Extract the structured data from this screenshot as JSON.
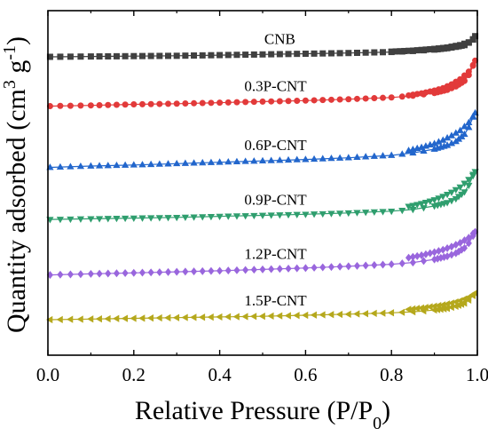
{
  "chart_data": {
    "type": "scatter",
    "xlabel": "Relative Pressure (P/P",
    "xlabel_sub": "0",
    "xlabel_suffix": ")",
    "ylabel": "Quantity adsorbed (cm",
    "ylabel_sup": "3",
    "ylabel_mid": " g",
    "ylabel_sup2": "-1",
    "ylabel_suffix": ")",
    "xlim": [
      0.0,
      1.0
    ],
    "ylim": [
      0,
      100
    ],
    "xticks": [
      "0.0",
      "0.2",
      "0.4",
      "0.6",
      "0.8",
      "1.0"
    ],
    "yticks_shown": false,
    "series": [
      {
        "name": "CNB",
        "color": "#404040",
        "marker": "square",
        "adsorption": [
          [
            0.005,
            86.6
          ],
          [
            0.1,
            86.7
          ],
          [
            0.2,
            86.8
          ],
          [
            0.3,
            86.9
          ],
          [
            0.4,
            87.1
          ],
          [
            0.5,
            87.3
          ],
          [
            0.6,
            87.5
          ],
          [
            0.7,
            87.7
          ],
          [
            0.8,
            88.0
          ],
          [
            0.85,
            88.3
          ],
          [
            0.9,
            88.7
          ],
          [
            0.93,
            89.1
          ],
          [
            0.95,
            89.5
          ],
          [
            0.97,
            90.0
          ],
          [
            0.98,
            90.7
          ],
          [
            0.99,
            91.7
          ],
          [
            0.995,
            92.6
          ]
        ],
        "desorption": [
          [
            0.99,
            91.6
          ],
          [
            0.98,
            90.8
          ],
          [
            0.96,
            90.0
          ],
          [
            0.93,
            89.3
          ],
          [
            0.9,
            88.9
          ],
          [
            0.85,
            88.4
          ],
          [
            0.8,
            88.1
          ]
        ]
      },
      {
        "name": "0.3P-CNT",
        "color": "#e23a3a",
        "marker": "circle",
        "adsorption": [
          [
            0.005,
            72.3
          ],
          [
            0.1,
            72.5
          ],
          [
            0.2,
            72.8
          ],
          [
            0.3,
            73.0
          ],
          [
            0.4,
            73.3
          ],
          [
            0.5,
            73.6
          ],
          [
            0.6,
            73.9
          ],
          [
            0.7,
            74.3
          ],
          [
            0.8,
            74.8
          ],
          [
            0.85,
            75.3
          ],
          [
            0.9,
            76.1
          ],
          [
            0.93,
            77.0
          ],
          [
            0.95,
            78.0
          ],
          [
            0.97,
            79.6
          ],
          [
            0.98,
            81.3
          ],
          [
            0.99,
            84.0
          ],
          [
            0.995,
            85.5
          ]
        ],
        "desorption": [
          [
            0.99,
            84.2
          ],
          [
            0.98,
            82.3
          ],
          [
            0.96,
            80.1
          ],
          [
            0.94,
            78.6
          ],
          [
            0.92,
            77.5
          ],
          [
            0.9,
            76.8
          ],
          [
            0.87,
            76.0
          ],
          [
            0.84,
            75.4
          ]
        ]
      },
      {
        "name": "0.6P-CNT",
        "color": "#2266cc",
        "marker": "triangle-up",
        "adsorption": [
          [
            0.005,
            54.5
          ],
          [
            0.1,
            54.9
          ],
          [
            0.2,
            55.2
          ],
          [
            0.3,
            55.6
          ],
          [
            0.4,
            56.0
          ],
          [
            0.5,
            56.4
          ],
          [
            0.6,
            56.8
          ],
          [
            0.7,
            57.3
          ],
          [
            0.8,
            58.0
          ],
          [
            0.85,
            58.7
          ],
          [
            0.9,
            59.8
          ],
          [
            0.93,
            60.9
          ],
          [
            0.95,
            62.0
          ],
          [
            0.97,
            64.1
          ],
          [
            0.98,
            66.1
          ],
          [
            0.99,
            69.1
          ],
          [
            0.995,
            70.3
          ]
        ],
        "desorption": [
          [
            0.99,
            69.3
          ],
          [
            0.98,
            67.5
          ],
          [
            0.96,
            65.2
          ],
          [
            0.94,
            63.7
          ],
          [
            0.92,
            62.4
          ],
          [
            0.9,
            61.4
          ],
          [
            0.87,
            60.3
          ],
          [
            0.84,
            59.4
          ]
        ]
      },
      {
        "name": "0.9P-CNT",
        "color": "#2f9e6e",
        "marker": "triangle-down",
        "adsorption": [
          [
            0.005,
            39.4
          ],
          [
            0.1,
            39.6
          ],
          [
            0.2,
            39.8
          ],
          [
            0.3,
            40.0
          ],
          [
            0.4,
            40.3
          ],
          [
            0.5,
            40.6
          ],
          [
            0.6,
            40.9
          ],
          [
            0.7,
            41.3
          ],
          [
            0.8,
            41.8
          ],
          [
            0.85,
            42.3
          ],
          [
            0.9,
            43.3
          ],
          [
            0.93,
            44.3
          ],
          [
            0.95,
            45.4
          ],
          [
            0.97,
            47.4
          ],
          [
            0.98,
            49.3
          ],
          [
            0.99,
            52.1
          ],
          [
            0.995,
            53.3
          ]
        ],
        "desorption": [
          [
            0.99,
            52.5
          ],
          [
            0.98,
            51.0
          ],
          [
            0.96,
            48.8
          ],
          [
            0.94,
            47.3
          ],
          [
            0.92,
            46.1
          ],
          [
            0.9,
            45.1
          ],
          [
            0.87,
            44.0
          ],
          [
            0.84,
            43.2
          ]
        ]
      },
      {
        "name": "1.2P-CNT",
        "color": "#9966dd",
        "marker": "diamond",
        "adsorption": [
          [
            0.005,
            23.3
          ],
          [
            0.1,
            23.6
          ],
          [
            0.2,
            23.9
          ],
          [
            0.3,
            24.2
          ],
          [
            0.4,
            24.5
          ],
          [
            0.5,
            24.9
          ],
          [
            0.6,
            25.3
          ],
          [
            0.7,
            25.8
          ],
          [
            0.8,
            26.4
          ],
          [
            0.85,
            26.9
          ],
          [
            0.9,
            27.8
          ],
          [
            0.93,
            28.7
          ],
          [
            0.95,
            29.6
          ],
          [
            0.97,
            31.1
          ],
          [
            0.98,
            32.5
          ],
          [
            0.99,
            34.6
          ],
          [
            0.995,
            35.8
          ]
        ],
        "desorption": [
          [
            0.99,
            35.3
          ],
          [
            0.98,
            34.1
          ],
          [
            0.96,
            32.6
          ],
          [
            0.94,
            31.5
          ],
          [
            0.92,
            30.6
          ],
          [
            0.9,
            29.9
          ],
          [
            0.87,
            29.0
          ],
          [
            0.84,
            28.3
          ]
        ]
      },
      {
        "name": "1.5P-CNT",
        "color": "#b5a81c",
        "marker": "triangle-left",
        "adsorption": [
          [
            0.005,
            10.3
          ],
          [
            0.1,
            10.5
          ],
          [
            0.2,
            10.7
          ],
          [
            0.3,
            10.9
          ],
          [
            0.4,
            11.1
          ],
          [
            0.5,
            11.3
          ],
          [
            0.6,
            11.6
          ],
          [
            0.7,
            11.9
          ],
          [
            0.8,
            12.3
          ],
          [
            0.85,
            12.6
          ],
          [
            0.9,
            13.1
          ],
          [
            0.93,
            13.6
          ],
          [
            0.95,
            14.2
          ],
          [
            0.97,
            15.1
          ],
          [
            0.98,
            16.0
          ],
          [
            0.99,
            17.3
          ],
          [
            0.995,
            18.0
          ]
        ],
        "desorption": [
          [
            0.99,
            17.6
          ],
          [
            0.98,
            16.8
          ],
          [
            0.96,
            15.8
          ],
          [
            0.94,
            15.1
          ],
          [
            0.92,
            14.6
          ],
          [
            0.9,
            14.2
          ],
          [
            0.87,
            13.7
          ],
          [
            0.84,
            13.3
          ]
        ]
      }
    ],
    "grid": false,
    "legend": "inline-labels"
  }
}
